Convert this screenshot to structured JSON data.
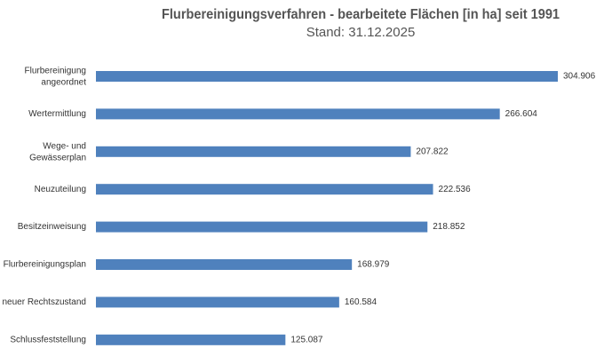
{
  "chart_data": {
    "type": "bar",
    "orientation": "horizontal",
    "title": "Flurbereinigungsverfahren - bearbeitete Flächen [in ha] seit 1991",
    "subtitle": "Stand: 31.12.2025",
    "categories": [
      "Flurbereinigung\nangeordnet",
      "Wertermittlung",
      "Wege- und\nGewässerplan",
      "Neuzuteilung",
      "Besitzeinweisung",
      "Flurbereinigungsplan",
      "neuer Rechtszustand",
      "Schlussfeststellung"
    ],
    "values": [
      304906,
      266604,
      207822,
      222536,
      218852,
      168979,
      160584,
      125087
    ],
    "value_labels": [
      "304.906",
      "266.604",
      "207.822",
      "222.536",
      "218.852",
      "168.979",
      "160.584",
      "125.087"
    ],
    "color": "#4f81bd"
  }
}
